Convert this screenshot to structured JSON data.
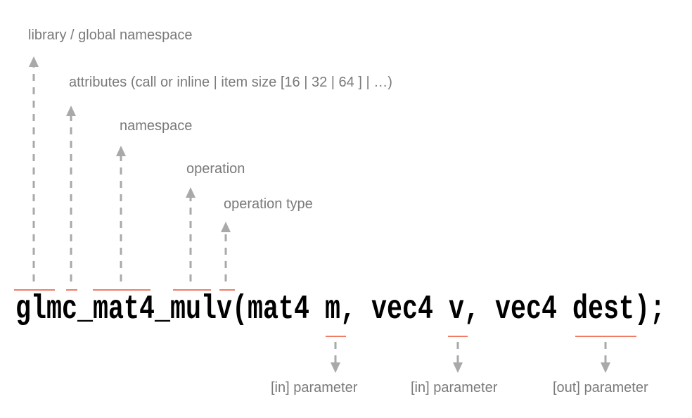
{
  "code": "glmc_mat4_mulv(mat4 m, vec4 v, vec4 dest);",
  "labels_above": [
    "library / global namespace",
    "attributes (call or inline | item size [16 | 32 | 64 ] | …)",
    "namespace",
    "operation",
    "operation type"
  ],
  "labels_below": [
    "[in] parameter",
    "[in] parameter",
    "[out] parameter"
  ],
  "colors": {
    "underline": "#f07c66",
    "arrow": "#a9a9a9",
    "label": "#7a7a7a",
    "code": "#000000"
  }
}
